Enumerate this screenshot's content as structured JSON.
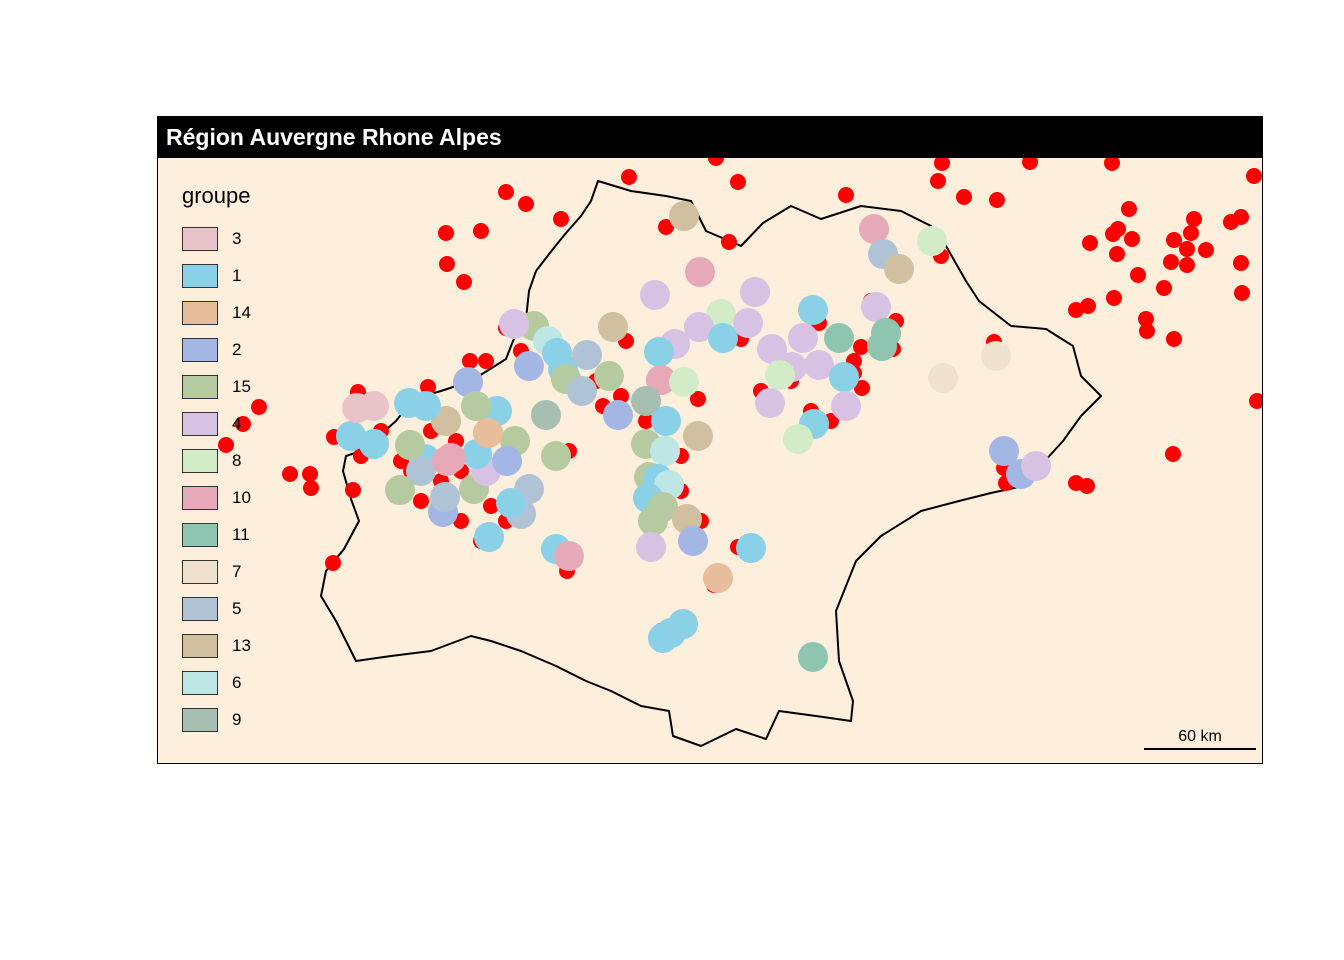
{
  "title": "Région Auvergne Rhone Alpes",
  "legend": {
    "title": "groupe",
    "items": [
      {
        "label": "3",
        "color": "#e8c4c8"
      },
      {
        "label": "1",
        "color": "#8ad0e6"
      },
      {
        "label": "14",
        "color": "#e8bd9b"
      },
      {
        "label": "2",
        "color": "#a4b7e4"
      },
      {
        "label": "15",
        "color": "#b6caa0"
      },
      {
        "label": "4",
        "color": "#d8c2e4"
      },
      {
        "label": "8",
        "color": "#d2ecc8"
      },
      {
        "label": "10",
        "color": "#e6a9b8"
      },
      {
        "label": "11",
        "color": "#8ec5b0"
      },
      {
        "label": "7",
        "color": "#f1e2d0"
      },
      {
        "label": "5",
        "color": "#b0c3d6"
      },
      {
        "label": "13",
        "color": "#d0c0a0"
      },
      {
        "label": "6",
        "color": "#bde6e4"
      },
      {
        "label": "9",
        "color": "#a6bfb0"
      }
    ]
  },
  "scale_bar": {
    "label": "60 km"
  },
  "colors": {
    "background": "#feefdd",
    "point": "#ff0000",
    "title_bar": "#000000"
  }
}
